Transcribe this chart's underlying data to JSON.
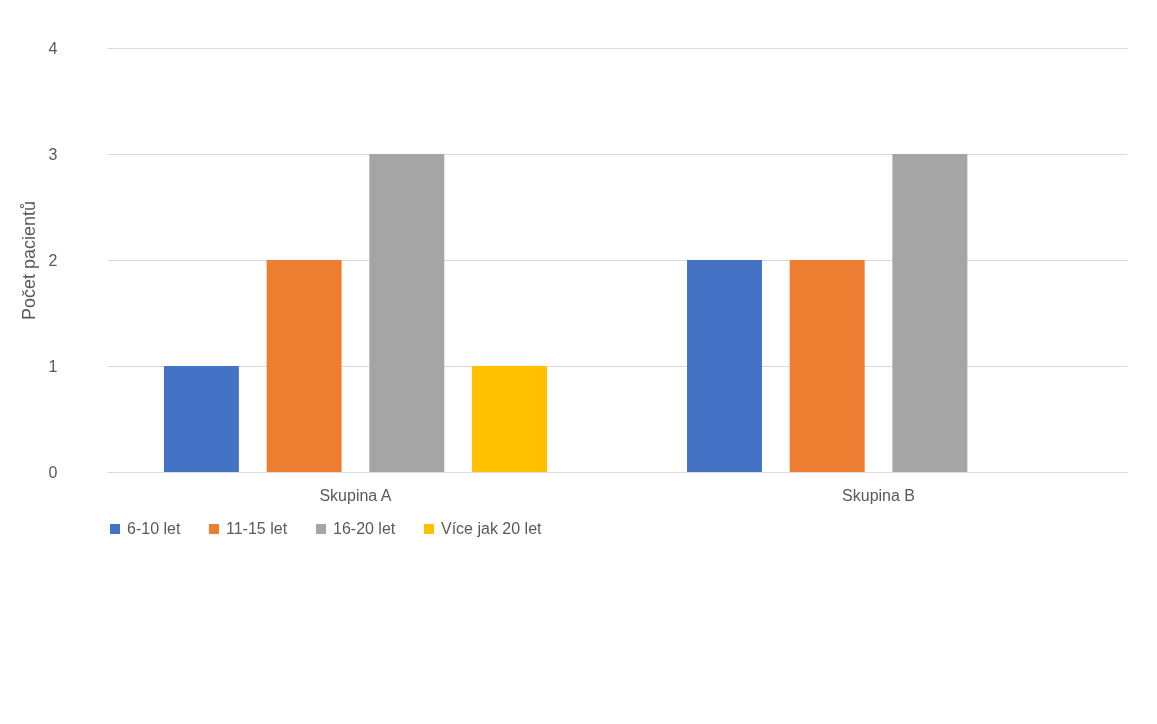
{
  "chart_data": {
    "type": "bar",
    "ylabel": "Počet pacientů",
    "categories": [
      "Skupina A",
      "Skupina B"
    ],
    "series": [
      {
        "name": "6-10 let",
        "color": "#4472c4",
        "values": [
          1,
          2
        ]
      },
      {
        "name": "11-15 let",
        "color": "#ed7d31",
        "values": [
          2,
          2
        ]
      },
      {
        "name": "16-20 let",
        "color": "#a5a5a5",
        "values": [
          3,
          3
        ]
      },
      {
        "name": "Více jak 20 let",
        "color": "#ffc000",
        "values": [
          1,
          0
        ]
      }
    ],
    "ylim": [
      0,
      4
    ],
    "yticks": [
      0,
      1,
      2,
      3,
      4
    ],
    "grid": "y",
    "legend": "bottom"
  }
}
